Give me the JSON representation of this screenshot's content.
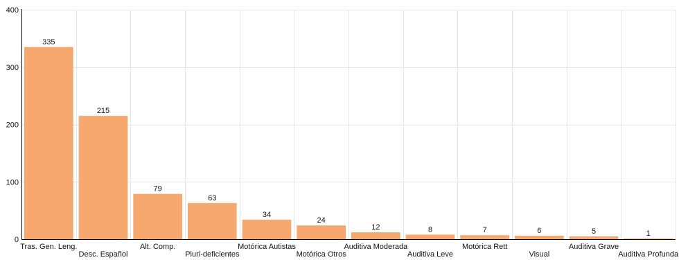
{
  "chart_data": {
    "type": "bar",
    "title": "",
    "xlabel": "",
    "ylabel": "",
    "ylim": [
      0,
      400
    ],
    "yticks": [
      0,
      100,
      200,
      300,
      400
    ],
    "grid": true,
    "bar_color": "#f59e5f",
    "categories": [
      "Tras. Gen. Leng.",
      "Desc. Español",
      "Alt. Comp.",
      "Pluri-deficientes",
      "Motórica Autistas",
      "Motórica Otros",
      "Auditiva Moderada",
      "Auditiva Leve",
      "Motórica Rett",
      "Visual",
      "Auditiva Grave",
      "Auditiva Profunda"
    ],
    "values": [
      335,
      215,
      79,
      63,
      34,
      24,
      12,
      8,
      7,
      6,
      5,
      1
    ]
  }
}
